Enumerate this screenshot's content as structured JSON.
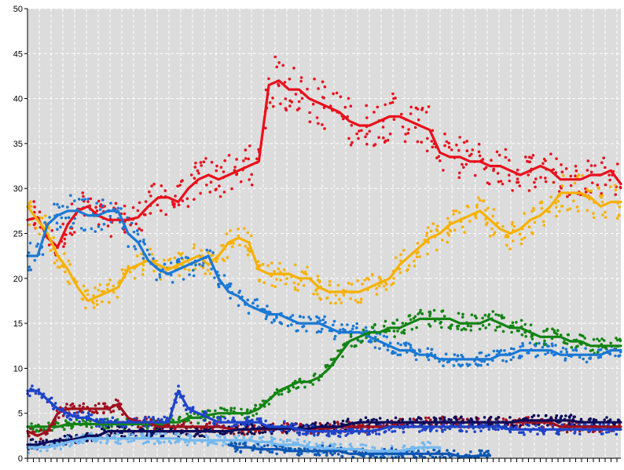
{
  "chart_data": {
    "type": "line",
    "title": "",
    "xlabel": "",
    "ylabel": "",
    "ylim": [
      0,
      50
    ],
    "yticks": [
      0,
      5,
      10,
      15,
      20,
      25,
      30,
      35,
      40,
      45,
      50
    ],
    "x_count": 60,
    "grid": true,
    "background": "#dcdcdc",
    "series": [
      {
        "color": "#e8101c",
        "values": [
          26.5,
          26.8,
          24.5,
          23.5,
          26,
          27.5,
          28,
          27,
          26.5,
          26.5,
          26.5,
          26.8,
          28,
          29,
          29,
          28.5,
          30,
          31,
          31.5,
          31,
          31.5,
          32,
          32.5,
          33,
          41.5,
          42,
          41,
          41,
          40,
          39.5,
          39,
          38.5,
          37.5,
          37,
          37,
          37.5,
          38,
          38,
          37.5,
          37,
          36.5,
          34,
          33.5,
          33.5,
          33,
          33,
          32.5,
          32.5,
          32,
          31.5,
          32,
          32.5,
          32,
          31,
          31,
          31,
          31.5,
          31.5,
          32,
          30.5
        ]
      },
      {
        "color": "#f6b100",
        "values": [
          28,
          26.5,
          25,
          22.5,
          21,
          19,
          17.5,
          18,
          18.5,
          19,
          21,
          21.5,
          22,
          21.5,
          21,
          21.5,
          22,
          22.5,
          21.5,
          22.5,
          24,
          24.5,
          24,
          21,
          20.5,
          20.5,
          20.5,
          20,
          20,
          19,
          18.5,
          18.5,
          18.5,
          18.5,
          19,
          19.5,
          20,
          21.5,
          22.5,
          23.5,
          24.5,
          25,
          26,
          26.5,
          27,
          27.5,
          26.5,
          25.5,
          25,
          25.5,
          26.5,
          27,
          28,
          29.5,
          29.5,
          29.5,
          29,
          28,
          28.5,
          28.5
        ]
      },
      {
        "color": "#1a78d4",
        "values": [
          22.5,
          22.5,
          26,
          27,
          27.5,
          27.5,
          27,
          27,
          27.5,
          27.5,
          25,
          24,
          22,
          21,
          20.5,
          21,
          21.5,
          22,
          22.5,
          20,
          18.5,
          18,
          17,
          16.5,
          16,
          16,
          15.5,
          15,
          15,
          15,
          14.5,
          14,
          14,
          14,
          13.5,
          13,
          12.5,
          12,
          12,
          11.5,
          11.5,
          11,
          11,
          11,
          11,
          11,
          11,
          11.5,
          11.5,
          12,
          12,
          12,
          12,
          11.5,
          11.5,
          11.5,
          11.5,
          11.5,
          12,
          12
        ]
      },
      {
        "color": "#138413",
        "values": [
          3.5,
          3.5,
          3.5,
          3.5,
          3.8,
          3.8,
          3.8,
          3.8,
          3.8,
          3.8,
          3.8,
          3.8,
          3.8,
          3.8,
          4,
          4,
          4.5,
          4.5,
          4.8,
          5,
          5,
          5,
          5,
          5.5,
          6.5,
          7.5,
          8,
          8.5,
          8.5,
          9,
          10,
          11.5,
          13,
          13.5,
          14,
          14,
          14.5,
          14.5,
          15,
          15.5,
          15.5,
          15.5,
          15.5,
          15,
          15,
          15,
          15.5,
          15,
          14.5,
          14.5,
          14,
          13.5,
          13.5,
          13.5,
          13,
          13,
          12.5,
          12.5,
          12.5,
          12.5
        ]
      },
      {
        "color": "#a0101e",
        "values": [
          3,
          2.5,
          3,
          5,
          5.5,
          5.5,
          5.5,
          5.5,
          5.5,
          6,
          4.5,
          4,
          4,
          3.5,
          3.5,
          3.5,
          3.5,
          3.5,
          3.5,
          3.5,
          3.3,
          3.2,
          3.2,
          3.2,
          3.2,
          3.3,
          3.3,
          3.3,
          3.3,
          3.3,
          3.3,
          3.5,
          3.5,
          3.5,
          3.5,
          3.5,
          3.5,
          4,
          4,
          4,
          4,
          4,
          4,
          4,
          4,
          4,
          4,
          4,
          4,
          4,
          4,
          4,
          4,
          3.5,
          3.5,
          3.5,
          3.5,
          3.5,
          3.5,
          3.5
        ]
      },
      {
        "color": "#0c0c5a",
        "values": [
          1.5,
          1.5,
          1.8,
          2,
          2,
          2.2,
          2.5,
          2.5,
          3,
          3,
          3,
          3,
          3,
          3,
          3,
          3,
          3,
          3,
          3,
          3,
          3,
          3.2,
          3.2,
          3.3,
          3.3,
          3.3,
          3.3,
          3.3,
          3.3,
          3.5,
          3.5,
          3.5,
          3.8,
          4,
          4,
          4,
          4,
          4,
          4,
          4,
          4,
          4,
          4,
          4,
          4,
          4,
          4,
          4,
          4,
          4.2,
          4.2,
          4.2,
          4.2,
          4.2,
          4.2,
          4,
          4,
          4,
          4,
          4
        ]
      },
      {
        "color": "#1f43c9",
        "values": [
          7.5,
          7.5,
          6.5,
          5.5,
          5,
          4.5,
          4.5,
          4,
          4,
          4,
          4,
          4,
          4,
          4,
          4,
          7.5,
          5.5,
          5,
          4.5,
          4,
          4,
          4,
          4,
          4,
          3.5,
          3.5,
          3.5,
          3.2,
          3,
          3,
          3,
          3,
          3,
          3,
          3,
          3.2,
          3.5,
          3.5,
          3.5,
          3.5,
          3.5,
          3.5,
          3.5,
          3.5,
          3.5,
          3.5,
          3.5,
          3.5,
          3.2,
          3.2,
          3.2,
          3.2,
          3.2,
          3.2,
          3.2,
          3.2,
          3.2,
          3.2,
          3.2,
          3.2
        ]
      },
      {
        "color": "#74b8f0",
        "values": [
          1.2,
          1.2,
          1.2,
          1.5,
          1.8,
          2,
          2.2,
          2.2,
          2.2,
          2.2,
          2.2,
          2.2,
          2.2,
          2.2,
          2.2,
          2.2,
          2,
          2,
          2,
          2,
          2,
          2,
          2,
          1.8,
          1.8,
          1.5,
          1.5,
          1.5,
          1.2,
          1.2,
          1,
          1,
          1,
          1,
          0.8,
          0.8,
          0.8,
          0.8,
          1,
          1.2,
          1.2,
          1.2
        ]
      },
      {
        "color": "#0d56b3",
        "values": [
          null,
          null,
          null,
          null,
          null,
          null,
          null,
          null,
          null,
          null,
          null,
          null,
          null,
          null,
          null,
          null,
          null,
          null,
          null,
          null,
          1.5,
          1.2,
          1.2,
          1,
          1,
          1,
          0.8,
          0.8,
          0.8,
          0.8,
          0.8,
          0.8,
          0.5,
          0.5,
          0.5,
          0.5,
          0.5,
          0.5,
          0.5,
          0.5,
          0.5,
          0.5,
          0.5,
          0.2,
          0.2,
          0.3,
          0.3
        ]
      }
    ]
  }
}
